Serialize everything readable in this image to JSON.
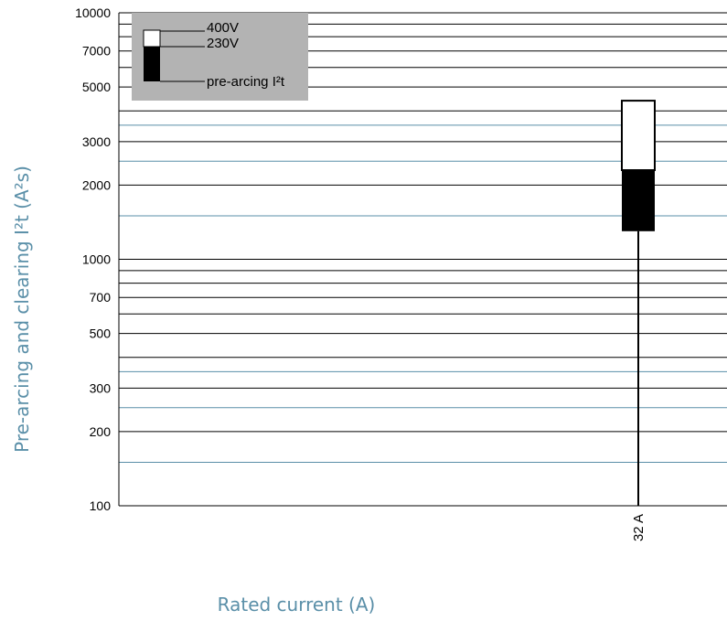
{
  "chart_data": {
    "type": "bar",
    "scale": "log",
    "ylim": [
      100,
      10000
    ],
    "ytick_labels": [
      "10000",
      "7000",
      "5000",
      "3000",
      "2000",
      "1000",
      "700",
      "500",
      "300",
      "200",
      "100"
    ],
    "ylabel": "Pre-arcing and clearing I²t (A²s)",
    "xlabel": "Rated current (A)",
    "categories": [
      "32 A"
    ],
    "series": [
      {
        "name": "pre-arcing I²t",
        "values": [
          1300
        ]
      },
      {
        "name": "230V",
        "values": [
          2300
        ]
      },
      {
        "name": "400V",
        "values": [
          4400
        ]
      }
    ],
    "legend": {
      "position": "top-left",
      "entries": [
        "400V",
        "230V",
        "pre-arcing I²t"
      ]
    },
    "colors": {
      "grid_major": "#000000",
      "grid_minor": "#5a8fa8",
      "legend_bg": "#b3b3b3",
      "pre_arcing": "#000000",
      "clearing": "#ffffff",
      "axis_title": "#5a8fa8"
    },
    "grid": true
  }
}
